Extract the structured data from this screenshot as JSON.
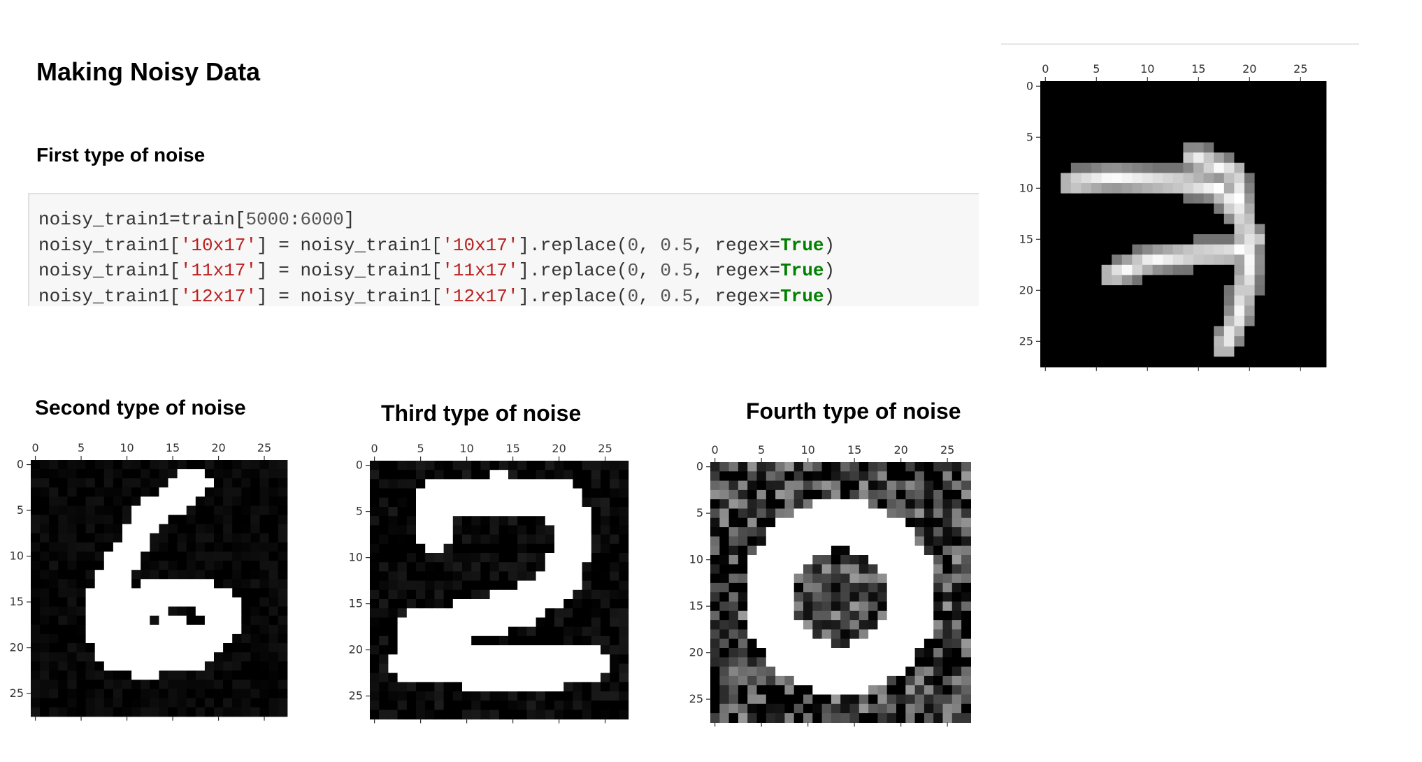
{
  "headings": {
    "main": "Making Noisy Data",
    "first": "First type of noise",
    "second": "Second type of noise",
    "third": "Third type of noise",
    "fourth": "Fourth type of noise"
  },
  "code": {
    "line1": {
      "lhs": "noisy_train1=train[",
      "n1": "5000",
      "sep": ":",
      "n2": "6000",
      "end": "]"
    },
    "lines": [
      {
        "key": "'10x17'"
      },
      {
        "key": "'11x17'"
      },
      {
        "key": "'12x17'"
      }
    ],
    "var_name": "noisy_train1",
    "method": ".replace(",
    "arg1": "0",
    "arg2": "0.5",
    "kwarg": "regex=",
    "kwval": "True"
  },
  "chart_data": [
    {
      "type": "heatmap",
      "name": "first-noise-image",
      "digit": "7",
      "size": [
        28,
        28
      ],
      "xticks": [
        "0",
        "5",
        "10",
        "15",
        "20",
        "25"
      ],
      "yticks": [
        "0",
        "5",
        "10",
        "15",
        "20",
        "25"
      ],
      "noise": "none",
      "colormap": "gray"
    },
    {
      "type": "heatmap",
      "name": "second-noise-image",
      "digit": "6",
      "size": [
        28,
        28
      ],
      "xticks": [
        "0",
        "5",
        "10",
        "15",
        "20",
        "25"
      ],
      "yticks": [
        "0",
        "5",
        "10",
        "15",
        "20",
        "25"
      ],
      "noise": "very faint background",
      "colormap": "gray"
    },
    {
      "type": "heatmap",
      "name": "third-noise-image",
      "digit": "2",
      "size": [
        28,
        28
      ],
      "xticks": [
        "0",
        "5",
        "10",
        "15",
        "20",
        "25"
      ],
      "yticks": [
        "0",
        "5",
        "10",
        "15",
        "20",
        "25"
      ],
      "noise": "faint background",
      "colormap": "gray"
    },
    {
      "type": "heatmap",
      "name": "fourth-noise-image",
      "digit": "0",
      "size": [
        28,
        28
      ],
      "xticks": [
        "0",
        "5",
        "10",
        "15",
        "20",
        "25"
      ],
      "yticks": [
        "0",
        "5",
        "10",
        "15",
        "20",
        "25"
      ],
      "noise": "strong background",
      "colormap": "gray"
    }
  ]
}
